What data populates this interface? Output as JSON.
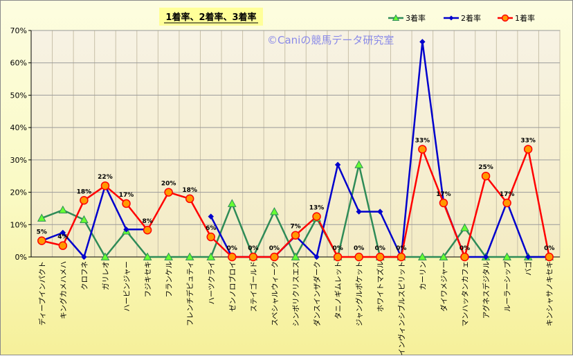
{
  "chart_data": {
    "type": "line",
    "title": "1着率、2着率、3着率",
    "watermark": "©Caniの競馬データ研究室",
    "ylim": [
      0,
      70
    ],
    "yticks": [
      "0%",
      "10%",
      "20%",
      "30%",
      "40%",
      "50%",
      "60%",
      "70%"
    ],
    "grid": true,
    "legend_position": "top-right",
    "categories": [
      "ディープインパクト",
      "キングカメハメハ",
      "クロフネ",
      "ガリレオ",
      "ハービンジャー",
      "フジキセキ",
      "フランケル",
      "フレンチデピュティ",
      "ハーツクライ",
      "ゼンノロブロイ",
      "ステイゴールド",
      "スペシャルウィーク",
      "シンボリクリスエス",
      "ダンスインザダーク",
      "タニノギムレット",
      "ジャングルポケット",
      "ホワイトマズル",
      "インヴィンシブルスピリット",
      "カーリン",
      "ダイワメジャー",
      "マンハッタンカフェ",
      "アグネスデジタル",
      "ルーラーシップ",
      "バゴ",
      "キンシャサノキセキ"
    ],
    "series": [
      {
        "name": "3着率",
        "color": "#2e8b57",
        "marker": "triangle",
        "fill": "#66ff33",
        "values": [
          12,
          14.5,
          11.5,
          0,
          8,
          0,
          0,
          0,
          0,
          16.5,
          0,
          14,
          0,
          12,
          0,
          28.5,
          0,
          0,
          0,
          0,
          9,
          0,
          0,
          0,
          0
        ]
      },
      {
        "name": "2着率",
        "color": "#0000cc",
        "marker": "diamond",
        "fill": "#0000cc",
        "values": [
          5,
          7.5,
          0,
          22,
          8.5,
          8.5,
          null,
          null,
          12.5,
          0,
          0,
          0,
          6.5,
          0,
          28.5,
          14,
          14,
          0,
          66.5,
          17,
          0,
          0,
          17,
          0,
          0
        ]
      },
      {
        "name": "1着率",
        "color": "#ff0000",
        "marker": "circle",
        "fill": "#ff9900",
        "values": [
          5,
          3.5,
          17.5,
          22,
          16.5,
          8.3,
          20,
          18,
          6.2,
          0,
          0,
          0,
          6.7,
          12.5,
          0,
          0,
          0,
          0,
          33.3,
          16.7,
          0,
          25,
          16.7,
          33.3,
          0
        ]
      }
    ],
    "data_labels": [
      "5%",
      "4%",
      "18%",
      "22%",
      "17%",
      "8%",
      "20%",
      "18%",
      "6%",
      "0%",
      "0%",
      "0%",
      "7%",
      "13%",
      "0%",
      "0%",
      "0%",
      "0%",
      "33%",
      "17%",
      "0%",
      "25%",
      "17%",
      "33%",
      "0%"
    ]
  }
}
